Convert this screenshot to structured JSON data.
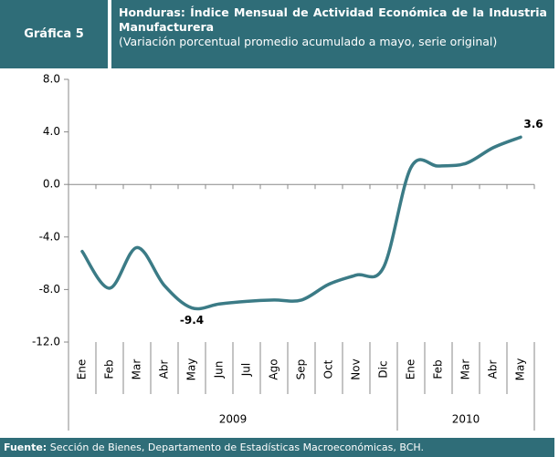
{
  "chart_data": {
    "type": "line",
    "chart_label": "Gráfica 5",
    "title": "Honduras: Índice Mensual de Actividad Económica de la Industria Manufacturera",
    "subtitle": "(Variación porcentual promedio acumulado a mayo, serie original)",
    "groups": [
      {
        "label": "2009",
        "categories": [
          "Ene",
          "Feb",
          "Mar",
          "Abr",
          "May",
          "Jun",
          "Jul",
          "Ago",
          "Sep",
          "Oct",
          "Nov",
          "Dic"
        ]
      },
      {
        "label": "2010",
        "categories": [
          "Ene",
          "Feb",
          "Mar",
          "Abr",
          "May"
        ]
      }
    ],
    "values": [
      -5.1,
      -7.9,
      -4.8,
      -7.7,
      -9.4,
      -9.1,
      -8.9,
      -8.8,
      -8.8,
      -7.6,
      -6.9,
      -6.3,
      1.3,
      1.4,
      1.6,
      2.8,
      3.6
    ],
    "value_labels": [
      null,
      null,
      null,
      null,
      "-9.4",
      null,
      null,
      null,
      null,
      null,
      null,
      null,
      null,
      null,
      null,
      null,
      "3.6"
    ],
    "color": "#3b7b86",
    "ylim": [
      -12,
      8
    ],
    "yticks": [
      {
        "value": 8,
        "label": "8.0"
      },
      {
        "value": 4,
        "label": "4.0"
      },
      {
        "value": 0,
        "label": "0.0"
      },
      {
        "value": -4,
        "label": "-4.0"
      },
      {
        "value": -8,
        "label": "-8.0"
      },
      {
        "value": -12,
        "label": "-12.0"
      }
    ],
    "grid": false,
    "source_label": "Fuente:",
    "source": "Sección de Bienes, Departamento de Estadísticas Macroeconómicas, BCH."
  }
}
